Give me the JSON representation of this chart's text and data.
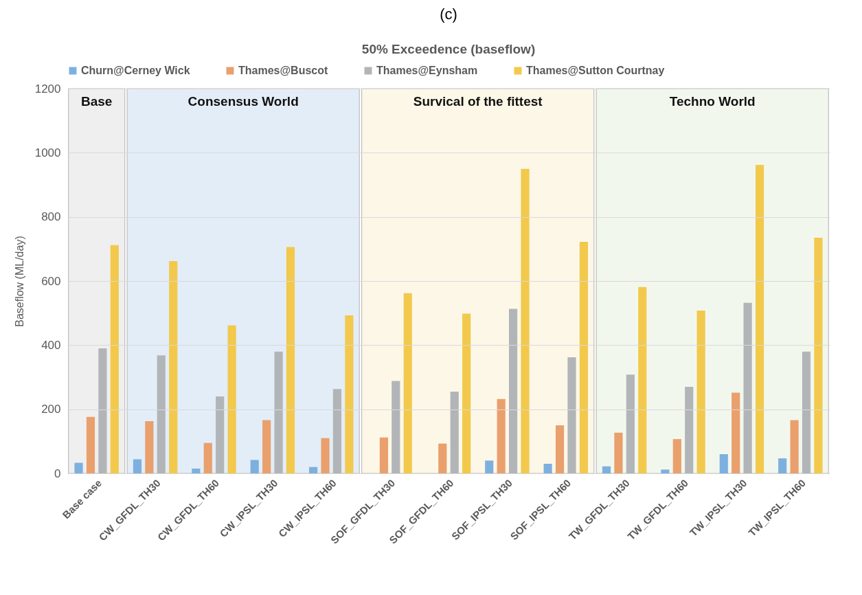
{
  "chart_data": {
    "type": "bar",
    "title": "(c)",
    "subtitle": "50% Exceedence (baseflow)",
    "ylabel": "Baseflow (ML/day)",
    "categories": [
      "Base case",
      "CW_GFDL_TH30",
      "CW_GFDL_TH60",
      "CW_IPSL_TH30",
      "CW_IPSL_TH60",
      "SOF_GFDL_TH30",
      "SOF_GFDL_TH60",
      "SOF_IPSL_TH30",
      "SOF_IPSL_TH60",
      "TW_GFDL_TH30",
      "TW_GFDL_TH60",
      "TW_IPSL_TH30",
      "TW_IPSL_TH60"
    ],
    "series": [
      {
        "name": "Churn@Cerney Wick",
        "color": "#7eb0df",
        "values": [
          33,
          44,
          15,
          42,
          20,
          0,
          0,
          40,
          30,
          22,
          12,
          60,
          47
        ]
      },
      {
        "name": "Thames@Buscot",
        "color": "#e9a06d",
        "values": [
          176,
          163,
          95,
          166,
          110,
          112,
          93,
          232,
          150,
          127,
          107,
          252,
          166
        ]
      },
      {
        "name": "Thames@Eynsham",
        "color": "#b2b5b8",
        "values": [
          390,
          368,
          240,
          380,
          263,
          288,
          255,
          513,
          362,
          308,
          270,
          532,
          380
        ]
      },
      {
        "name": "Thames@Sutton Courtnay",
        "color": "#f2c94c",
        "values": [
          712,
          662,
          462,
          706,
          493,
          562,
          498,
          950,
          722,
          581,
          508,
          962,
          735
        ]
      }
    ],
    "ylim": [
      0,
      1200
    ],
    "yticks": [
      0,
      200,
      400,
      600,
      800,
      1000,
      1200
    ],
    "grid": "y",
    "legend": "top",
    "bands": [
      {
        "axis": "x",
        "from": "Base case",
        "to": "Base case",
        "label": "Base",
        "color": "#efefef"
      },
      {
        "axis": "x",
        "from": "CW_GFDL_TH30",
        "to": "CW_IPSL_TH60",
        "label": "Consensus World",
        "color": "#e3edf7"
      },
      {
        "axis": "x",
        "from": "SOF_GFDL_TH30",
        "to": "SOF_IPSL_TH60",
        "label": "Survical of the fittest",
        "color": "#fdf7e8"
      },
      {
        "axis": "x",
        "from": "TW_GFDL_TH30",
        "to": "TW_IPSL_TH60",
        "label": "Techno World",
        "color": "#f2f7ee"
      }
    ]
  }
}
